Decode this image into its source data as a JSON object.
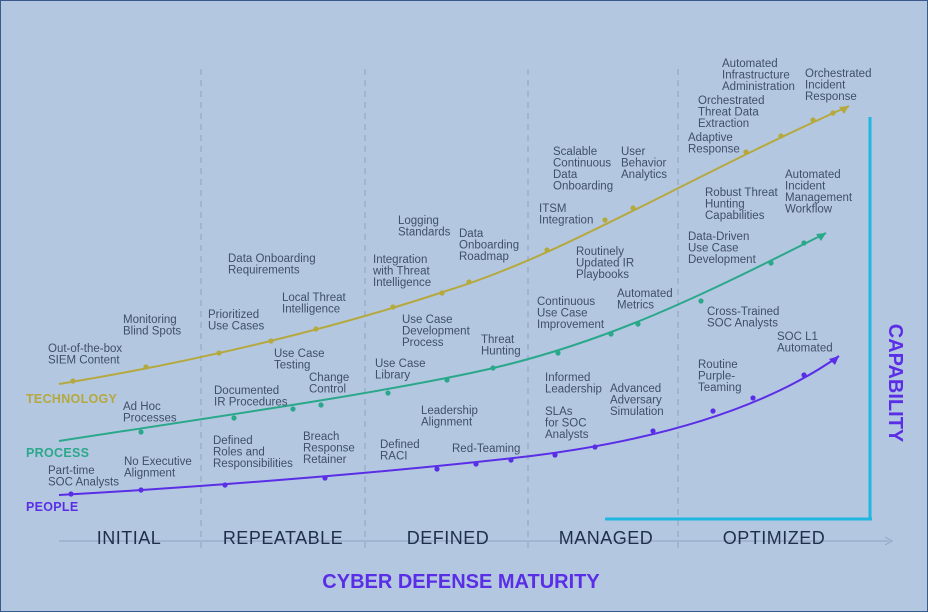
{
  "titles": {
    "x_axis": "CYBER DEFENSE MATURITY",
    "y_axis": "CAPABILITY"
  },
  "stages": [
    "INITIAL",
    "REPEATABLE",
    "DEFINED",
    "MANAGED",
    "OPTIMIZED"
  ],
  "colors": {
    "background": "#b4c7e1",
    "technology": "#b5a93e",
    "process": "#2aa88a",
    "people": "#5a2ee6",
    "axis": "#1fb6e0",
    "divider": "#8ea3c0",
    "text": "#3f4f66",
    "stage_text": "#1f2f4a"
  },
  "series": {
    "technology": {
      "name": "TECHNOLOGY",
      "milestones": [
        [
          "Out-of-the-box",
          "SIEM Content"
        ],
        [
          "Monitoring",
          "Blind Spots"
        ],
        [
          "Prioritized",
          "Use Cases"
        ],
        [
          "Data Onboarding",
          "Requirements"
        ],
        [
          "Local Threat",
          "Intelligence"
        ],
        [
          "Integration",
          "with Threat",
          "Intelligence"
        ],
        [
          "Logging",
          "Standards"
        ],
        [
          "Data",
          "Onboarding",
          "Roadmap"
        ],
        [
          "ITSM",
          "Integration"
        ],
        [
          "Scalable",
          "Continuous",
          "Data",
          "Onboarding"
        ],
        [
          "User",
          "Behavior",
          "Analytics"
        ],
        [
          "Adaptive",
          "Response"
        ],
        [
          "Orchestrated",
          "Threat Data",
          "Extraction"
        ],
        [
          "Automated",
          "Infrastructure",
          "Administration"
        ],
        [
          "Orchestrated",
          "Incident",
          "Response"
        ]
      ]
    },
    "process": {
      "name": "PROCESS",
      "milestones": [
        [
          "Ad Hoc",
          "Processes"
        ],
        [
          "Documented",
          "IR Procedures"
        ],
        [
          "Use Case",
          "Testing"
        ],
        [
          "Change",
          "Control"
        ],
        [
          "Use Case",
          "Library"
        ],
        [
          "Use Case",
          "Development",
          "Process"
        ],
        [
          "Threat",
          "Hunting"
        ],
        [
          "Continuous",
          "Use Case",
          "Improvement"
        ],
        [
          "Routinely",
          "Updated IR",
          "Playbooks"
        ],
        [
          "Automated",
          "Metrics"
        ],
        [
          "Data-Driven",
          "Use Case",
          "Development"
        ],
        [
          "Robust Threat",
          "Hunting",
          "Capabilities"
        ],
        [
          "Automated",
          "Incident",
          "Management",
          "Workflow"
        ]
      ]
    },
    "people": {
      "name": "PEOPLE",
      "milestones": [
        [
          "Part-time",
          "SOC Analysts"
        ],
        [
          "No Executive",
          "Alignment"
        ],
        [
          "Defined",
          "Roles and",
          "Responsibilities"
        ],
        [
          "Breach",
          "Response",
          "Retainer"
        ],
        [
          "Defined",
          "RACI"
        ],
        [
          "Leadership",
          "Alignment"
        ],
        [
          "Red-Teaming"
        ],
        [
          "Informed",
          "Leadership"
        ],
        [
          "SLAs",
          "for SOC",
          "Analysts"
        ],
        [
          "Advanced",
          "Adversary",
          "Simulation"
        ],
        [
          "Cross-Trained",
          "SOC Analysts"
        ],
        [
          "Routine",
          "Purple-",
          "Teaming"
        ],
        [
          "SOC L1",
          "Automated"
        ]
      ]
    }
  }
}
